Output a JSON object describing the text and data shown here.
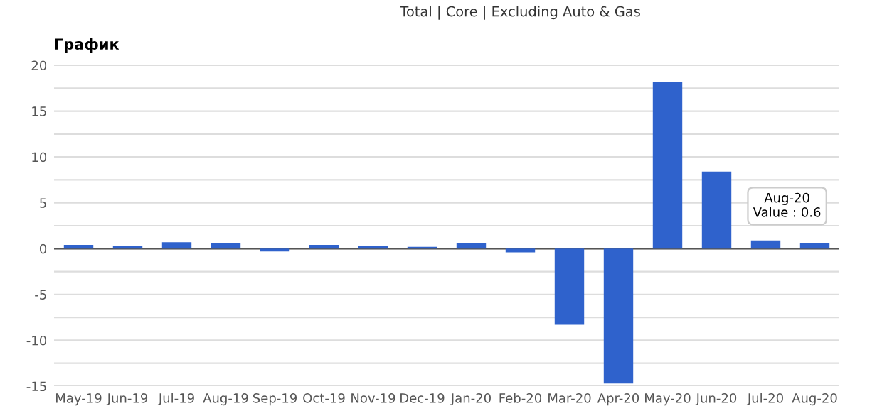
{
  "chart_data": {
    "type": "bar",
    "title": "График",
    "categories": [
      "May-19",
      "Jun-19",
      "Jul-19",
      "Aug-19",
      "Sep-19",
      "Oct-19",
      "Nov-19",
      "Dec-19",
      "Jan-20",
      "Feb-20",
      "Mar-20",
      "Apr-20",
      "May-20",
      "Jun-20",
      "Jul-20",
      "Aug-20"
    ],
    "values": [
      0.4,
      0.3,
      0.7,
      0.6,
      -0.3,
      0.4,
      0.3,
      0.2,
      0.6,
      -0.4,
      -8.3,
      -14.7,
      18.2,
      8.4,
      0.9,
      0.6
    ],
    "color": "#2f62cc",
    "ylim": [
      -15,
      20
    ],
    "yticks": [
      -15,
      {
        "value": -12.5,
        "label": null
      },
      -10,
      {
        "value": -7.5,
        "label": null
      },
      -5,
      {
        "value": -2.5,
        "label": null
      },
      0,
      {
        "value": 2.5,
        "label": null
      },
      5,
      {
        "value": 7.5,
        "label": null
      },
      10,
      {
        "value": 12.5,
        "label": null
      },
      15,
      {
        "value": 17.5,
        "label": null
      },
      20
    ],
    "grid": "y",
    "legend": false,
    "annotations": [
      "Total | Core | Excluding Auto & Gas",
      {
        "text": "Aug-20\nValue : 0.6",
        "x": "Aug-20",
        "y": 0.6
      }
    ]
  }
}
